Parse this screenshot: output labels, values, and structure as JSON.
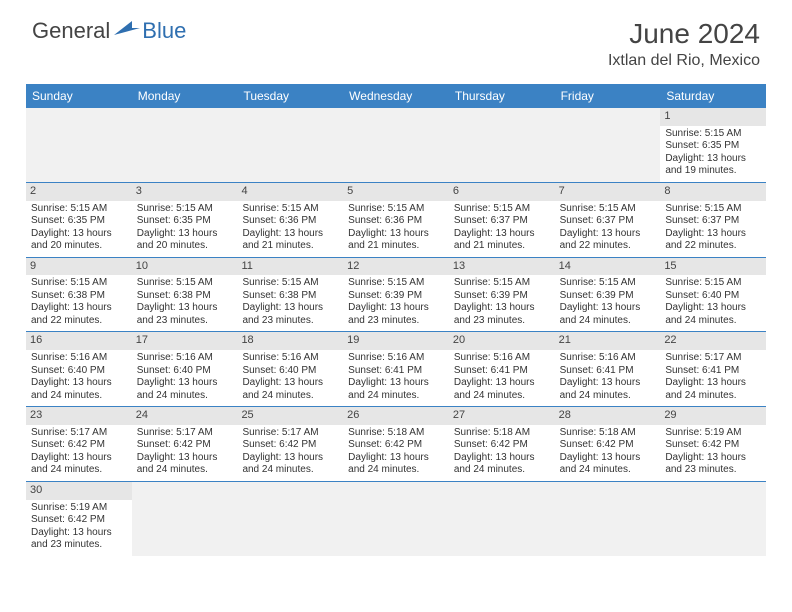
{
  "logo": {
    "part1": "General",
    "part2": "Blue"
  },
  "title": "June 2024",
  "location": "Ixtlan del Rio, Mexico",
  "colors": {
    "header_bg": "#3b82c4",
    "header_text": "#ffffff",
    "daynum_bg": "#e6e6e6",
    "row_border": "#3b82c4",
    "empty_bg": "#f1f1f1"
  },
  "weekdays": [
    "Sunday",
    "Monday",
    "Tuesday",
    "Wednesday",
    "Thursday",
    "Friday",
    "Saturday"
  ],
  "weeks": [
    [
      {
        "empty": true
      },
      {
        "empty": true
      },
      {
        "empty": true
      },
      {
        "empty": true
      },
      {
        "empty": true
      },
      {
        "empty": true
      },
      {
        "day": "1",
        "sunrise": "Sunrise: 5:15 AM",
        "sunset": "Sunset: 6:35 PM",
        "dl1": "Daylight: 13 hours",
        "dl2": "and 19 minutes."
      }
    ],
    [
      {
        "day": "2",
        "sunrise": "Sunrise: 5:15 AM",
        "sunset": "Sunset: 6:35 PM",
        "dl1": "Daylight: 13 hours",
        "dl2": "and 20 minutes."
      },
      {
        "day": "3",
        "sunrise": "Sunrise: 5:15 AM",
        "sunset": "Sunset: 6:35 PM",
        "dl1": "Daylight: 13 hours",
        "dl2": "and 20 minutes."
      },
      {
        "day": "4",
        "sunrise": "Sunrise: 5:15 AM",
        "sunset": "Sunset: 6:36 PM",
        "dl1": "Daylight: 13 hours",
        "dl2": "and 21 minutes."
      },
      {
        "day": "5",
        "sunrise": "Sunrise: 5:15 AM",
        "sunset": "Sunset: 6:36 PM",
        "dl1": "Daylight: 13 hours",
        "dl2": "and 21 minutes."
      },
      {
        "day": "6",
        "sunrise": "Sunrise: 5:15 AM",
        "sunset": "Sunset: 6:37 PM",
        "dl1": "Daylight: 13 hours",
        "dl2": "and 21 minutes."
      },
      {
        "day": "7",
        "sunrise": "Sunrise: 5:15 AM",
        "sunset": "Sunset: 6:37 PM",
        "dl1": "Daylight: 13 hours",
        "dl2": "and 22 minutes."
      },
      {
        "day": "8",
        "sunrise": "Sunrise: 5:15 AM",
        "sunset": "Sunset: 6:37 PM",
        "dl1": "Daylight: 13 hours",
        "dl2": "and 22 minutes."
      }
    ],
    [
      {
        "day": "9",
        "sunrise": "Sunrise: 5:15 AM",
        "sunset": "Sunset: 6:38 PM",
        "dl1": "Daylight: 13 hours",
        "dl2": "and 22 minutes."
      },
      {
        "day": "10",
        "sunrise": "Sunrise: 5:15 AM",
        "sunset": "Sunset: 6:38 PM",
        "dl1": "Daylight: 13 hours",
        "dl2": "and 23 minutes."
      },
      {
        "day": "11",
        "sunrise": "Sunrise: 5:15 AM",
        "sunset": "Sunset: 6:38 PM",
        "dl1": "Daylight: 13 hours",
        "dl2": "and 23 minutes."
      },
      {
        "day": "12",
        "sunrise": "Sunrise: 5:15 AM",
        "sunset": "Sunset: 6:39 PM",
        "dl1": "Daylight: 13 hours",
        "dl2": "and 23 minutes."
      },
      {
        "day": "13",
        "sunrise": "Sunrise: 5:15 AM",
        "sunset": "Sunset: 6:39 PM",
        "dl1": "Daylight: 13 hours",
        "dl2": "and 23 minutes."
      },
      {
        "day": "14",
        "sunrise": "Sunrise: 5:15 AM",
        "sunset": "Sunset: 6:39 PM",
        "dl1": "Daylight: 13 hours",
        "dl2": "and 24 minutes."
      },
      {
        "day": "15",
        "sunrise": "Sunrise: 5:15 AM",
        "sunset": "Sunset: 6:40 PM",
        "dl1": "Daylight: 13 hours",
        "dl2": "and 24 minutes."
      }
    ],
    [
      {
        "day": "16",
        "sunrise": "Sunrise: 5:16 AM",
        "sunset": "Sunset: 6:40 PM",
        "dl1": "Daylight: 13 hours",
        "dl2": "and 24 minutes."
      },
      {
        "day": "17",
        "sunrise": "Sunrise: 5:16 AM",
        "sunset": "Sunset: 6:40 PM",
        "dl1": "Daylight: 13 hours",
        "dl2": "and 24 minutes."
      },
      {
        "day": "18",
        "sunrise": "Sunrise: 5:16 AM",
        "sunset": "Sunset: 6:40 PM",
        "dl1": "Daylight: 13 hours",
        "dl2": "and 24 minutes."
      },
      {
        "day": "19",
        "sunrise": "Sunrise: 5:16 AM",
        "sunset": "Sunset: 6:41 PM",
        "dl1": "Daylight: 13 hours",
        "dl2": "and 24 minutes."
      },
      {
        "day": "20",
        "sunrise": "Sunrise: 5:16 AM",
        "sunset": "Sunset: 6:41 PM",
        "dl1": "Daylight: 13 hours",
        "dl2": "and 24 minutes."
      },
      {
        "day": "21",
        "sunrise": "Sunrise: 5:16 AM",
        "sunset": "Sunset: 6:41 PM",
        "dl1": "Daylight: 13 hours",
        "dl2": "and 24 minutes."
      },
      {
        "day": "22",
        "sunrise": "Sunrise: 5:17 AM",
        "sunset": "Sunset: 6:41 PM",
        "dl1": "Daylight: 13 hours",
        "dl2": "and 24 minutes."
      }
    ],
    [
      {
        "day": "23",
        "sunrise": "Sunrise: 5:17 AM",
        "sunset": "Sunset: 6:42 PM",
        "dl1": "Daylight: 13 hours",
        "dl2": "and 24 minutes."
      },
      {
        "day": "24",
        "sunrise": "Sunrise: 5:17 AM",
        "sunset": "Sunset: 6:42 PM",
        "dl1": "Daylight: 13 hours",
        "dl2": "and 24 minutes."
      },
      {
        "day": "25",
        "sunrise": "Sunrise: 5:17 AM",
        "sunset": "Sunset: 6:42 PM",
        "dl1": "Daylight: 13 hours",
        "dl2": "and 24 minutes."
      },
      {
        "day": "26",
        "sunrise": "Sunrise: 5:18 AM",
        "sunset": "Sunset: 6:42 PM",
        "dl1": "Daylight: 13 hours",
        "dl2": "and 24 minutes."
      },
      {
        "day": "27",
        "sunrise": "Sunrise: 5:18 AM",
        "sunset": "Sunset: 6:42 PM",
        "dl1": "Daylight: 13 hours",
        "dl2": "and 24 minutes."
      },
      {
        "day": "28",
        "sunrise": "Sunrise: 5:18 AM",
        "sunset": "Sunset: 6:42 PM",
        "dl1": "Daylight: 13 hours",
        "dl2": "and 24 minutes."
      },
      {
        "day": "29",
        "sunrise": "Sunrise: 5:19 AM",
        "sunset": "Sunset: 6:42 PM",
        "dl1": "Daylight: 13 hours",
        "dl2": "and 23 minutes."
      }
    ],
    [
      {
        "day": "30",
        "sunrise": "Sunrise: 5:19 AM",
        "sunset": "Sunset: 6:42 PM",
        "dl1": "Daylight: 13 hours",
        "dl2": "and 23 minutes."
      },
      {
        "empty": true
      },
      {
        "empty": true
      },
      {
        "empty": true
      },
      {
        "empty": true
      },
      {
        "empty": true
      },
      {
        "empty": true
      }
    ]
  ]
}
